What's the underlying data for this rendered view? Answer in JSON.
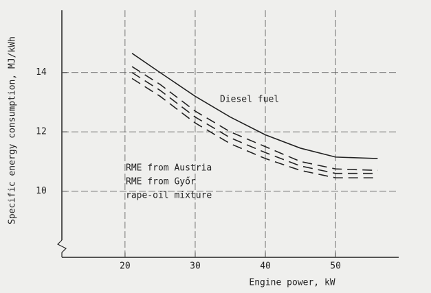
{
  "chart_data": {
    "type": "line",
    "xlabel": "Engine power, kW",
    "ylabel": "Specific energy consumption, MJ/kWh",
    "x": [
      21,
      25,
      30,
      35,
      40,
      45,
      50,
      56
    ],
    "series": [
      {
        "name": "Diesel fuel",
        "color": "#222222",
        "dash": false,
        "values": [
          14.65,
          14.0,
          13.2,
          12.5,
          11.9,
          11.45,
          11.15,
          11.1
        ]
      },
      {
        "name": "RME from Austria",
        "color": "#222222",
        "dash": true,
        "values": [
          14.2,
          13.6,
          12.7,
          12.0,
          11.5,
          11.0,
          10.75,
          10.7
        ]
      },
      {
        "name": "RME from Győr",
        "color": "#222222",
        "dash": true,
        "values": [
          14.0,
          13.4,
          12.5,
          11.8,
          11.3,
          10.85,
          10.6,
          10.6
        ]
      },
      {
        "name": "rape-oil mixture",
        "color": "#222222",
        "dash": true,
        "values": [
          13.8,
          13.2,
          12.3,
          11.6,
          11.1,
          10.7,
          10.45,
          10.45
        ]
      }
    ],
    "xlim": [
      11,
      59
    ],
    "xticks": [
      20,
      30,
      40,
      50
    ],
    "ylim": [
      8,
      16.1
    ],
    "yticks": [
      10,
      12,
      14
    ],
    "grid": true
  }
}
